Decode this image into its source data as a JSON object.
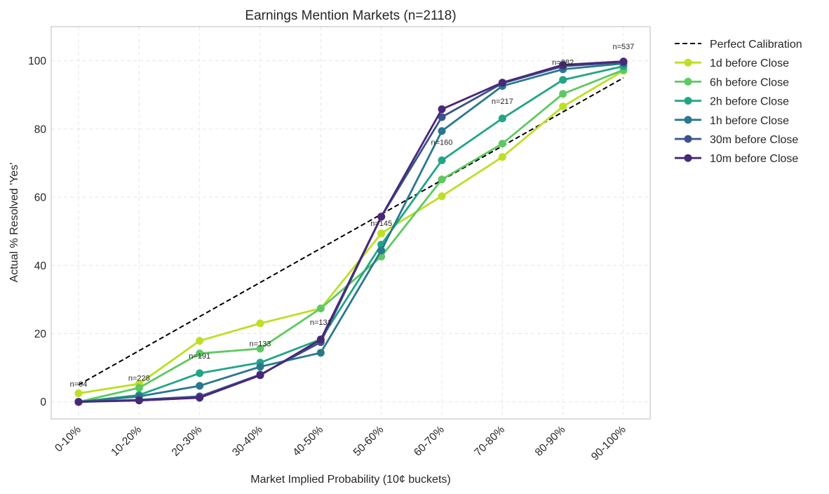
{
  "chart_data": {
    "type": "line",
    "title": "Earnings Mention Markets (n=2118)",
    "xlabel": "Market Implied Probability (10¢ buckets)",
    "ylabel": "Actual % Resolved 'Yes'",
    "categories": [
      "0-10%",
      "10-20%",
      "20-30%",
      "30-40%",
      "40-50%",
      "50-60%",
      "60-70%",
      "70-80%",
      "80-90%",
      "90-100%"
    ],
    "ylim": [
      -5,
      110
    ],
    "yticks": [
      0,
      20,
      40,
      60,
      80,
      100
    ],
    "grid": true,
    "legend_position": "outside-top-right",
    "reference_line": {
      "name": "Perfect Calibration",
      "values": [
        5,
        15,
        25,
        35,
        45,
        55,
        65,
        75,
        85,
        95
      ],
      "color": "#000000",
      "style": "dashed"
    },
    "series": [
      {
        "name": "1d before Close",
        "color": "#bddf26",
        "values": [
          2.5,
          5.3,
          17.9,
          23.0,
          27.4,
          49.4,
          60.3,
          71.8,
          86.6,
          97.1
        ]
      },
      {
        "name": "6h before Close",
        "color": "#5ec962",
        "values": [
          0.0,
          4.1,
          14.2,
          15.6,
          27.4,
          42.6,
          65.2,
          75.7,
          90.3,
          97.3
        ]
      },
      {
        "name": "2h before Close",
        "color": "#21a585",
        "values": [
          0.0,
          2.0,
          8.4,
          11.5,
          18.3,
          46.1,
          70.8,
          83.1,
          94.4,
          98.4
        ]
      },
      {
        "name": "1h before Close",
        "color": "#2a788e",
        "values": [
          0.0,
          1.6,
          4.7,
          10.3,
          14.4,
          44.4,
          79.4,
          92.6,
          97.5,
          99.2
        ]
      },
      {
        "name": "30m before Close",
        "color": "#3b528b",
        "values": [
          0.0,
          0.6,
          1.6,
          8.0,
          17.5,
          54.3,
          83.5,
          93.4,
          98.4,
          99.6
        ]
      },
      {
        "name": "10m before Close",
        "color": "#482878",
        "values": [
          0.0,
          0.4,
          1.2,
          7.8,
          18.3,
          54.3,
          85.8,
          93.6,
          98.8,
          99.8
        ]
      }
    ],
    "annotations": [
      {
        "text": "n=94",
        "category_index": 0,
        "y": 4.5
      },
      {
        "text": "n=228",
        "category_index": 1,
        "y": 6.2
      },
      {
        "text": "n=191",
        "category_index": 2,
        "y": 12.7
      },
      {
        "text": "n=133",
        "category_index": 3,
        "y": 16.3
      },
      {
        "text": "n=131",
        "category_index": 4,
        "y": 22.6
      },
      {
        "text": "n=145",
        "category_index": 5,
        "y": 51.6
      },
      {
        "text": "n=160",
        "category_index": 6,
        "y": 75.3
      },
      {
        "text": "n=217",
        "category_index": 7,
        "y": 87.4
      },
      {
        "text": "n=282",
        "category_index": 8,
        "y": 98.8
      },
      {
        "text": "n=537",
        "category_index": 9,
        "y": 103.4
      }
    ]
  }
}
